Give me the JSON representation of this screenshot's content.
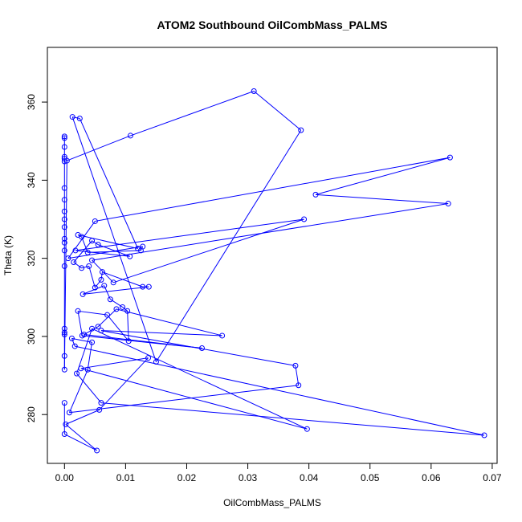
{
  "chart_data": {
    "type": "line",
    "title": "ATOM2 Southbound OilCombMass_PALMS",
    "xlabel": "OilCombMass_PALMS",
    "ylabel": "Theta (K)",
    "xlim": [
      -0.0028,
      0.0708
    ],
    "ylim": [
      267.5,
      374.0
    ],
    "xticks": [
      0.0,
      0.01,
      0.02,
      0.03,
      0.04,
      0.05,
      0.06,
      0.07
    ],
    "xtick_labels": [
      "0.00",
      "0.01",
      "0.02",
      "0.03",
      "0.04",
      "0.05",
      "0.06",
      "0.07"
    ],
    "yticks": [
      280,
      300,
      320,
      340,
      360
    ],
    "ytick_labels": [
      "280",
      "300",
      "320",
      "340",
      "360"
    ],
    "grid": false,
    "color": "#0000ff",
    "marker": "open-circle",
    "x": [
      0.0,
      0.0,
      0.0,
      0.0,
      0.0,
      0.0,
      0.0,
      0.0,
      0.0,
      0.0,
      0.0,
      0.0,
      0.0,
      0.0,
      0.0,
      0.0,
      0.0,
      0.0,
      0.0,
      0.0,
      0.0004,
      0.0108,
      0.031,
      0.0387,
      0.015,
      0.0013,
      0.0025,
      0.012,
      0.0022,
      0.0028,
      0.0038,
      0.0125,
      0.0128,
      0.0006,
      0.005,
      0.0631,
      0.0411,
      0.0628,
      0.0045,
      0.008,
      0.0392,
      0.0018,
      0.0107,
      0.0055,
      0.0045,
      0.0015,
      0.0028,
      0.004,
      0.005,
      0.006,
      0.0062,
      0.0128,
      0.0138,
      0.003,
      0.0065,
      0.0075,
      0.0095,
      0.0103,
      0.0105,
      0.007,
      0.0022,
      0.0029,
      0.0225,
      0.0032,
      0.0055,
      0.0085,
      0.0258,
      0.006,
      0.0378,
      0.0383,
      0.0008,
      0.0038,
      0.0045,
      0.0012,
      0.0017,
      0.0687,
      0.006,
      0.002,
      0.0045,
      0.0397,
      0.0027,
      0.0137,
      0.0057,
      0.0002,
      0.0053,
      0.0,
      0.0
    ],
    "y": [
      351.2,
      350.8,
      348.5,
      346.0,
      345.5,
      344.8,
      338.0,
      335.0,
      332.0,
      330.0,
      328.0,
      325.0,
      324.0,
      322.0,
      318.0,
      302.0,
      300.5,
      301.0,
      295.0,
      291.5,
      345.0,
      351.4,
      362.8,
      352.8,
      293.5,
      356.2,
      355.8,
      322.5,
      326.0,
      325.5,
      321.5,
      322.0,
      323.0,
      320.0,
      329.5,
      345.8,
      336.3,
      334.0,
      319.5,
      313.8,
      330.0,
      322.0,
      320.5,
      323.5,
      324.5,
      319.0,
      317.5,
      318.0,
      312.5,
      314.5,
      316.5,
      312.7,
      312.7,
      310.8,
      313.0,
      309.5,
      307.5,
      306.5,
      298.8,
      305.5,
      306.5,
      300.2,
      297.0,
      300.5,
      302.5,
      307.0,
      300.2,
      301.5,
      292.5,
      287.5,
      280.5,
      291.5,
      298.5,
      299.5,
      297.5,
      274.7,
      283.0,
      290.5,
      302.0,
      276.3,
      291.8,
      294.5,
      281.2,
      277.5,
      270.8,
      275.0,
      283.0
    ]
  }
}
